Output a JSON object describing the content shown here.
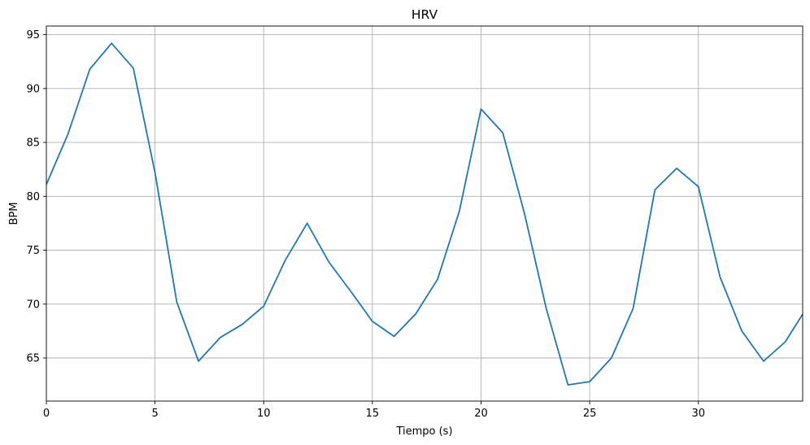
{
  "chart_data": {
    "type": "line",
    "title": "HRV",
    "xlabel": "Tiempo (s)",
    "ylabel": "BPM",
    "xlim": [
      0,
      34.8
    ],
    "ylim": [
      61,
      95.8
    ],
    "xticks": [
      0,
      5,
      10,
      15,
      20,
      25,
      30
    ],
    "yticks": [
      65,
      70,
      75,
      80,
      85,
      90,
      95
    ],
    "grid": true,
    "series": [
      {
        "color": "#1f77b4",
        "x": [
          0,
          1,
          2,
          3,
          4,
          5,
          6,
          7,
          8,
          9,
          10,
          11,
          12,
          13,
          14,
          15,
          16,
          17,
          18,
          19,
          20,
          21,
          22,
          23,
          24,
          25,
          26,
          27,
          28,
          29,
          30,
          31,
          32,
          33,
          34,
          35
        ],
        "y": [
          81.1,
          85.8,
          91.8,
          94.2,
          91.9,
          82.2,
          70.2,
          64.7,
          66.9,
          68.1,
          69.8,
          74.1,
          77.5,
          73.9,
          71.2,
          68.4,
          67.0,
          69.1,
          72.3,
          78.6,
          88.1,
          85.9,
          78.4,
          69.6,
          62.5,
          62.8,
          65.0,
          69.6,
          80.6,
          82.6,
          80.9,
          72.5,
          67.5,
          64.7,
          66.5,
          69.7
        ]
      }
    ]
  }
}
